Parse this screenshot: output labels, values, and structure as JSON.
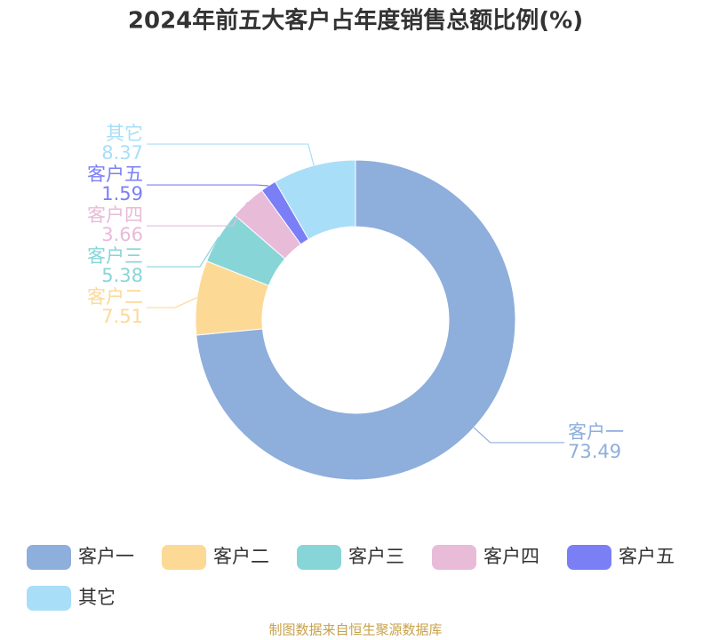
{
  "chart_data": {
    "type": "pie",
    "title": "2024年前五大客户占年度销售总额比例(%)",
    "categories": [
      "客户一",
      "客户二",
      "客户三",
      "客户四",
      "客户五",
      "其它"
    ],
    "values": [
      73.49,
      7.51,
      5.38,
      3.66,
      1.59,
      8.37
    ],
    "colors": [
      "#8eaedb",
      "#fdd996",
      "#88d5d8",
      "#e8bbd9",
      "#7b7ff5",
      "#a9def8"
    ],
    "source": "制图数据来自恒生聚源数据库"
  }
}
